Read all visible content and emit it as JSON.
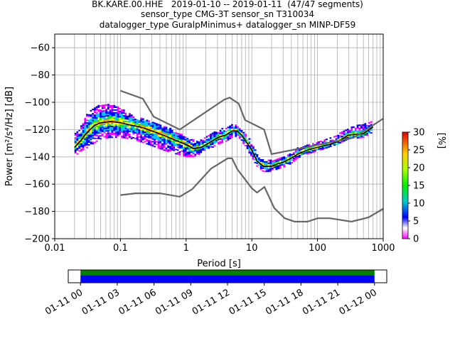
{
  "header": {
    "title_line1": "BK.KARE.00.HHE   2019-01-10 -- 2019-01-11  (47/47 segments)",
    "title_line2": "sensor_type CMG-3T sensor_sn T310034",
    "title_line3": "datalogger_type GuralpMinimus+ datalogger_sn MINP-DF59"
  },
  "chart_data": [
    {
      "type": "heatmap",
      "xlabel": "Period [s]",
      "ylabel": "Power [m²/s⁴/Hz] [dB]",
      "x_scale": "log",
      "xlim": [
        0.01,
        1000
      ],
      "ylim": [
        -200,
        -50
      ],
      "xticks": [
        0.01,
        0.1,
        1,
        10,
        100,
        1000
      ],
      "xtick_labels": [
        "0.01",
        "0.1",
        "1",
        "10",
        "100",
        "1000"
      ],
      "yticks": [
        -200,
        -180,
        -160,
        -140,
        -120,
        -100,
        -80,
        -60
      ],
      "ytick_labels": [
        "−200",
        "−180",
        "−160",
        "−140",
        "−120",
        "−100",
        "−80",
        "−60"
      ],
      "grid": true,
      "colorbar": {
        "label": "[%]",
        "range": [
          0,
          30
        ],
        "ticks": [
          "0",
          "5",
          "10",
          "15",
          "20",
          "25",
          "30"
        ]
      },
      "series": [
        {
          "name": "",
          "role": "mean",
          "color": "#000000",
          "x": [
            0.02,
            0.025,
            0.03,
            0.04,
            0.05,
            0.07,
            0.1,
            0.15,
            0.2,
            0.3,
            0.5,
            0.7,
            1.0,
            1.3,
            1.7,
            2.2,
            3.0,
            4.0,
            5.0,
            6.0,
            7.0,
            8.0,
            10,
            12,
            15,
            20,
            25,
            30,
            40,
            50,
            70,
            100,
            150,
            200,
            300,
            500,
            700
          ],
          "y": [
            -133,
            -128,
            -123,
            -117,
            -115,
            -114,
            -115,
            -117,
            -118,
            -121,
            -125,
            -128,
            -131,
            -134,
            -133,
            -130,
            -126,
            -124,
            -121,
            -121,
            -124,
            -128,
            -135,
            -143,
            -147,
            -147,
            -145,
            -144,
            -141,
            -138,
            -135,
            -133,
            -131,
            -129,
            -124,
            -123,
            -118
          ]
        },
        {
          "name": "",
          "role": "noise-model-high",
          "color": "#666666",
          "x": [
            0.1,
            0.22,
            0.32,
            0.8,
            3.8,
            4.6,
            6.3,
            7.9,
            15.4,
            20,
            354.8,
            1000
          ],
          "y": [
            -91.5,
            -97.4,
            -110.5,
            -120,
            -98,
            -96.5,
            -101,
            -113,
            -120,
            -138,
            -126,
            -112
          ]
        },
        {
          "name": "",
          "role": "noise-model-low",
          "color": "#666666",
          "x": [
            0.1,
            0.17,
            0.4,
            0.8,
            1.24,
            2.4,
            4.3,
            5.0,
            6.0,
            10,
            12,
            15.6,
            21.9,
            31.6,
            45,
            70,
            101,
            154,
            328,
            600,
            1000
          ],
          "y": [
            -168,
            -166.7,
            -166.7,
            -169.2,
            -163.7,
            -148.6,
            -141.1,
            -141.1,
            -149,
            -163,
            -166.2,
            -162.1,
            -177.5,
            -185,
            -187.5,
            -187.5,
            -185,
            -185,
            -187.5,
            -184.4,
            -178
          ]
        }
      ],
      "ppsd_envelope": {
        "x": [
          0.02,
          0.025,
          0.03,
          0.04,
          0.05,
          0.07,
          0.1,
          0.15,
          0.2,
          0.3,
          0.5,
          0.7,
          1.0,
          1.3,
          1.7,
          2.2,
          3.0,
          4.0,
          5.0,
          6.0,
          7.0,
          8.0,
          10,
          12,
          15,
          20,
          25,
          30,
          40,
          50,
          70,
          100,
          150,
          200,
          300,
          500,
          700
        ],
        "upper": [
          -124,
          -118,
          -110,
          -104,
          -102,
          -102,
          -104,
          -110,
          -112,
          -114,
          -118,
          -122,
          -125,
          -128,
          -127,
          -124,
          -121,
          -119,
          -117,
          -117,
          -119,
          -123,
          -130,
          -138,
          -142,
          -143,
          -142,
          -140,
          -137,
          -134,
          -131,
          -129,
          -127,
          -124,
          -119,
          -116,
          -114
        ],
        "lower": [
          -140,
          -136,
          -134,
          -130,
          -127,
          -126,
          -126,
          -127,
          -129,
          -132,
          -136,
          -138,
          -140,
          -140,
          -138,
          -135,
          -131,
          -129,
          -126,
          -125,
          -128,
          -133,
          -140,
          -147,
          -151,
          -151,
          -149,
          -148,
          -145,
          -141,
          -138,
          -136,
          -133,
          -131,
          -127,
          -126,
          -122
        ]
      }
    },
    {
      "type": "timeline",
      "x_range": [
        "2019-01-10 23:00",
        "2019-01-12 01:00"
      ],
      "xtick_labels": [
        "01-11 00",
        "01-11 03",
        "01-11 06",
        "01-11 09",
        "01-11 12",
        "01-11 15",
        "01-11 18",
        "01-11 21",
        "01-12 00"
      ],
      "coverage": {
        "start": "2019-01-11 00:00",
        "end": "2019-01-12 00:00",
        "color_top": "#008000",
        "color_bottom": "#0000ff"
      }
    }
  ]
}
